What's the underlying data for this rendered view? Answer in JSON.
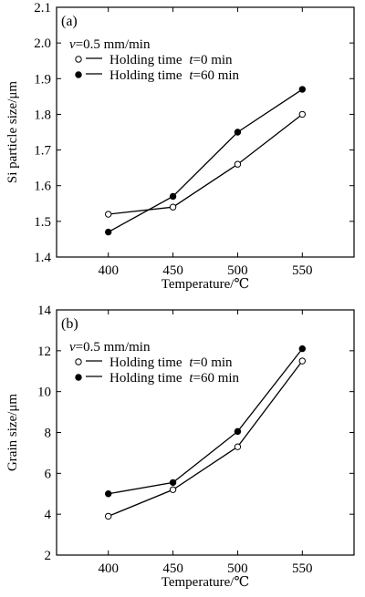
{
  "chart_data": [
    {
      "type": "line",
      "panel_label": "(a)",
      "annotation": {
        "italic": "v",
        "text": "=0.5 mm/min"
      },
      "xlabel": "Temperature/℃",
      "ylabel": "Si particle size/μm",
      "x": [
        400,
        450,
        500,
        550
      ],
      "xlim": [
        360,
        590
      ],
      "ylim": [
        1.4,
        2.1
      ],
      "xticks": [
        "400",
        "450",
        "500",
        "550"
      ],
      "yticks": [
        "1.4",
        "1.5",
        "1.6",
        "1.7",
        "1.8",
        "1.9",
        "2.0",
        "2.1"
      ],
      "legend_position": "top-left",
      "series": [
        {
          "name_prefix": "Holding time ",
          "name_italic": "t",
          "name_suffix": "=0 min",
          "marker": "open-circle",
          "values": [
            1.52,
            1.54,
            1.66,
            1.8
          ]
        },
        {
          "name_prefix": "Holding time ",
          "name_italic": "t",
          "name_suffix": "=60 min",
          "marker": "filled-circle",
          "values": [
            1.47,
            1.57,
            1.75,
            1.87
          ]
        }
      ]
    },
    {
      "type": "line",
      "panel_label": "(b)",
      "annotation": {
        "italic": "v",
        "text": "=0.5 mm/min"
      },
      "xlabel": "Temperature/℃",
      "ylabel": "Grain size/μm",
      "x": [
        400,
        450,
        500,
        550
      ],
      "xlim": [
        360,
        590
      ],
      "ylim": [
        2,
        14
      ],
      "xticks": [
        "400",
        "450",
        "500",
        "550"
      ],
      "yticks": [
        "2",
        "4",
        "6",
        "8",
        "10",
        "12",
        "14"
      ],
      "legend_position": "top-left",
      "series": [
        {
          "name_prefix": "Holding time ",
          "name_italic": "t",
          "name_suffix": "=0 min",
          "marker": "open-circle",
          "values": [
            3.9,
            5.2,
            7.3,
            11.5
          ]
        },
        {
          "name_prefix": "Holding time ",
          "name_italic": "t",
          "name_suffix": "=60 min",
          "marker": "filled-circle",
          "values": [
            5.0,
            5.55,
            8.05,
            12.1
          ]
        }
      ]
    }
  ]
}
